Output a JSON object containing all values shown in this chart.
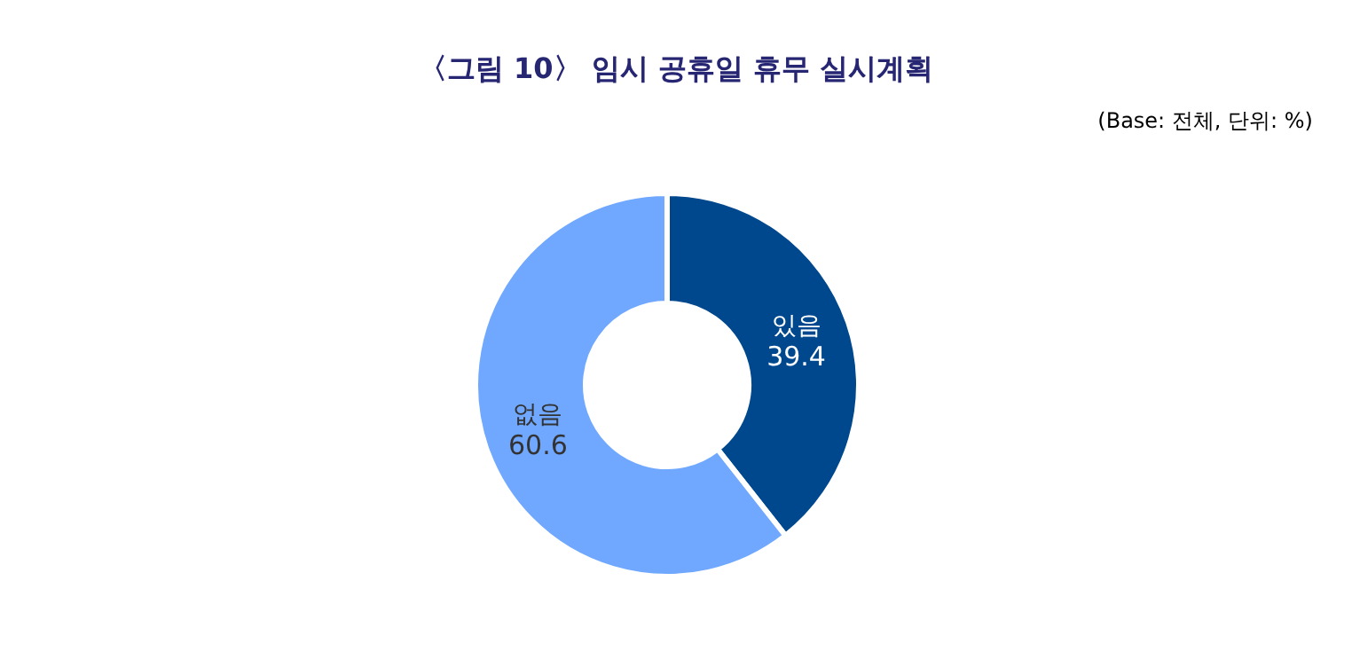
{
  "chart_data": {
    "type": "donut",
    "title": "〈그림 10〉 임시 공휴일 휴무 실시계획",
    "annotations": [
      "(Base: 전체, 단위: %)"
    ],
    "categories": [
      "있음",
      "없음"
    ],
    "values": [
      39.4,
      60.6
    ],
    "colors": [
      "#00488e",
      "#70a8ff"
    ],
    "data_labels": true
  }
}
